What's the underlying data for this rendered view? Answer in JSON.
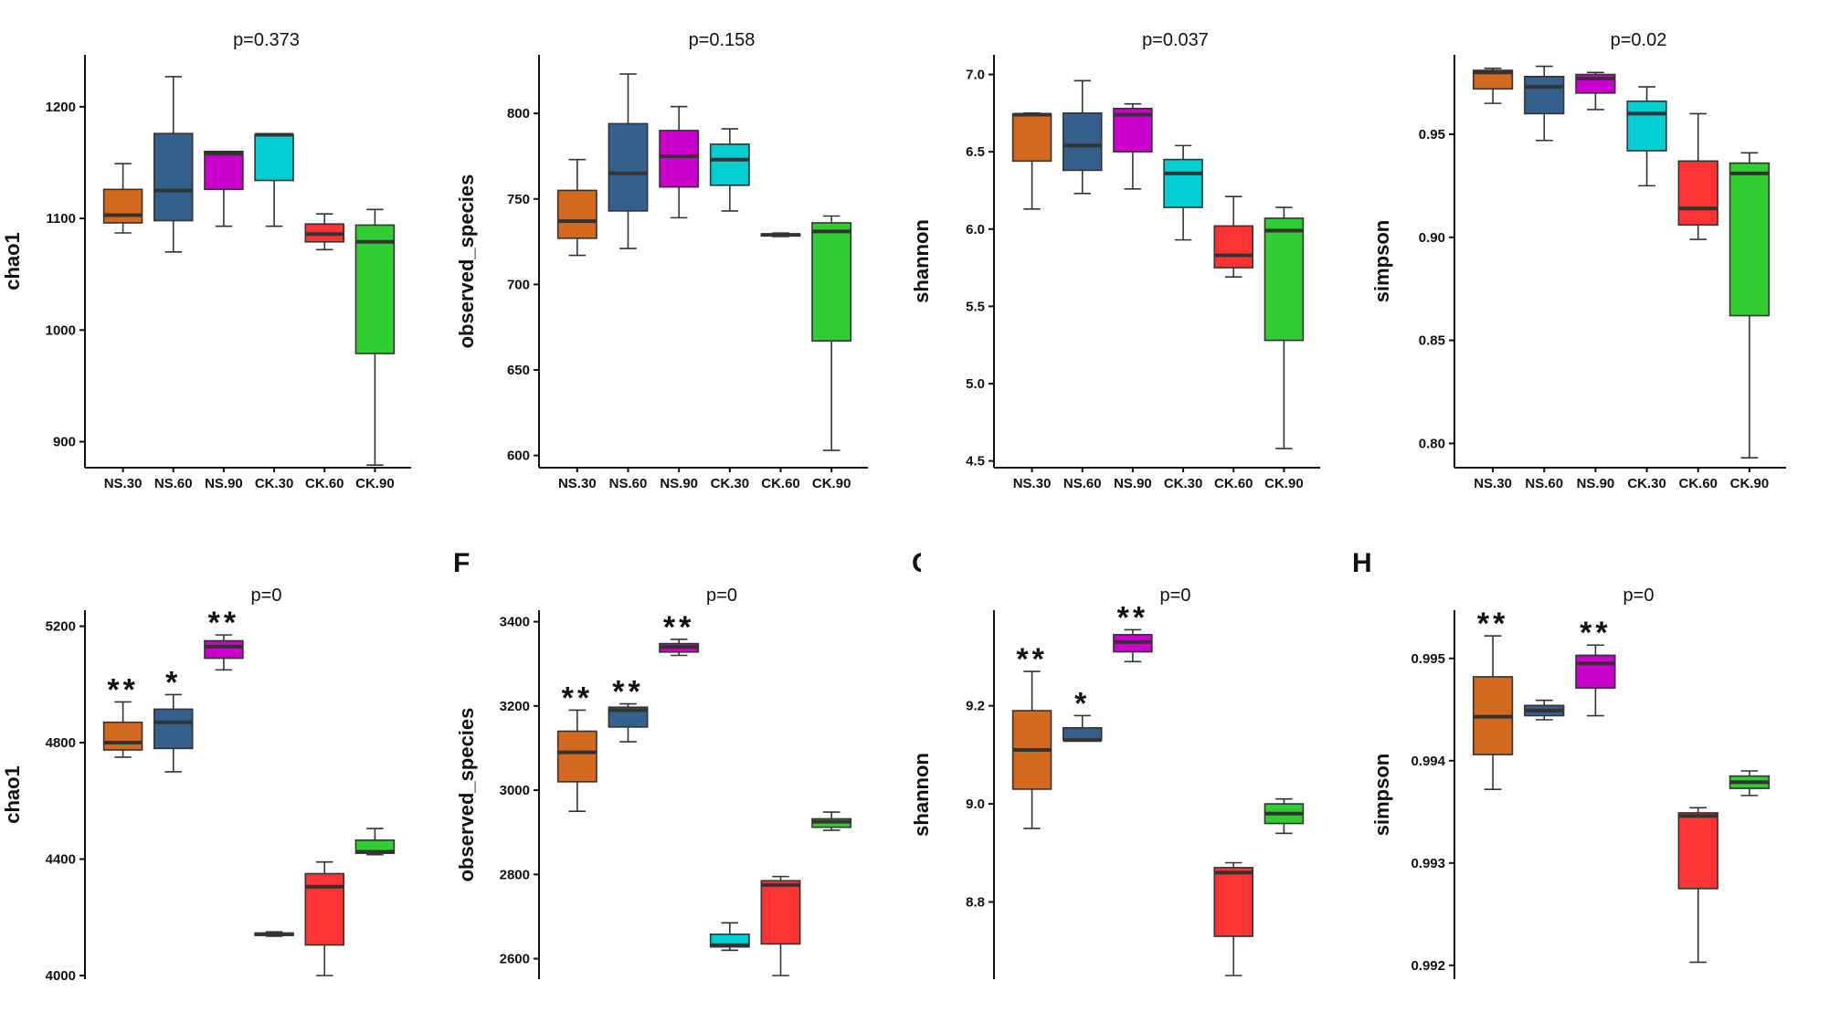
{
  "colors": {
    "NS.30": "#D2691E",
    "NS.60": "#33608C",
    "NS.90": "#CC00CC",
    "CK.30": "#00CED1",
    "CK.60": "#FF3333",
    "CK.90": "#32CD32"
  },
  "panel_letters": [
    "F",
    "G",
    "H"
  ],
  "chart_data": [
    {
      "type": "box",
      "title": "p=0.373",
      "ylabel": "chao1",
      "ylim": [
        880,
        1240
      ],
      "yticks": [
        900,
        1000,
        1100,
        1200
      ],
      "categories": [
        "NS.30",
        "NS.60",
        "NS.90",
        "CK.30",
        "CK.60",
        "CK.90"
      ],
      "boxes": [
        {
          "group": "NS.30",
          "min": 1087,
          "q1": 1096,
          "median": 1103,
          "q3": 1126,
          "max": 1149,
          "star": ""
        },
        {
          "group": "NS.60",
          "min": 1070,
          "q1": 1098,
          "median": 1125,
          "q3": 1176,
          "max": 1227,
          "star": ""
        },
        {
          "group": "NS.90",
          "min": 1093,
          "q1": 1126,
          "median": 1158,
          "q3": 1160,
          "max": 1160,
          "star": ""
        },
        {
          "group": "CK.30",
          "min": 1093,
          "q1": 1134,
          "median": 1175,
          "q3": 1175,
          "max": 1175,
          "star": ""
        },
        {
          "group": "CK.60",
          "min": 1072,
          "q1": 1079,
          "median": 1086,
          "q3": 1095,
          "max": 1104,
          "star": ""
        },
        {
          "group": "CK.90",
          "min": 879,
          "q1": 979,
          "median": 1079,
          "q3": 1094,
          "max": 1108,
          "star": ""
        }
      ]
    },
    {
      "type": "box",
      "title": "p=0.158",
      "ylabel": "observed_species",
      "ylim": [
        595,
        830
      ],
      "yticks": [
        600,
        650,
        700,
        750,
        800
      ],
      "categories": [
        "NS.30",
        "NS.60",
        "NS.90",
        "CK.30",
        "CK.60",
        "CK.90"
      ],
      "boxes": [
        {
          "group": "NS.30",
          "min": 717,
          "q1": 727,
          "median": 737,
          "q3": 755,
          "max": 773,
          "star": ""
        },
        {
          "group": "NS.60",
          "min": 721,
          "q1": 743,
          "median": 765,
          "q3": 794,
          "max": 823,
          "star": ""
        },
        {
          "group": "NS.90",
          "min": 739,
          "q1": 757,
          "median": 775,
          "q3": 790,
          "max": 804,
          "star": ""
        },
        {
          "group": "CK.30",
          "min": 743,
          "q1": 758,
          "median": 773,
          "q3": 782,
          "max": 791,
          "star": ""
        },
        {
          "group": "CK.60",
          "min": 728,
          "q1": 728.5,
          "median": 729,
          "q3": 729.5,
          "max": 730,
          "star": ""
        },
        {
          "group": "CK.90",
          "min": 603,
          "q1": 667,
          "median": 731,
          "q3": 736,
          "max": 740,
          "star": ""
        }
      ]
    },
    {
      "type": "box",
      "title": "p=0.037",
      "ylabel": "shannon",
      "ylim": [
        4.48,
        7.08
      ],
      "yticks": [
        4.5,
        5.0,
        5.5,
        6.0,
        6.5,
        7.0
      ],
      "tick_format": "1",
      "categories": [
        "NS.30",
        "NS.60",
        "NS.90",
        "CK.30",
        "CK.60",
        "CK.90"
      ],
      "boxes": [
        {
          "group": "NS.30",
          "min": 6.13,
          "q1": 6.44,
          "median": 6.74,
          "q3": 6.745,
          "max": 6.75,
          "star": ""
        },
        {
          "group": "NS.60",
          "min": 6.23,
          "q1": 6.38,
          "median": 6.54,
          "q3": 6.75,
          "max": 6.96,
          "star": ""
        },
        {
          "group": "NS.90",
          "min": 6.26,
          "q1": 6.5,
          "median": 6.74,
          "q3": 6.78,
          "max": 6.81,
          "star": ""
        },
        {
          "group": "CK.30",
          "min": 5.93,
          "q1": 6.14,
          "median": 6.36,
          "q3": 6.45,
          "max": 6.54,
          "star": ""
        },
        {
          "group": "CK.60",
          "min": 5.69,
          "q1": 5.75,
          "median": 5.83,
          "q3": 6.02,
          "max": 6.21,
          "star": ""
        },
        {
          "group": "CK.90",
          "min": 4.58,
          "q1": 5.28,
          "median": 5.99,
          "q3": 6.07,
          "max": 6.14,
          "star": ""
        }
      ]
    },
    {
      "type": "box",
      "title": "p=0.02",
      "ylabel": "simpson",
      "ylim": [
        0.79,
        0.985
      ],
      "yticks": [
        0.8,
        0.85,
        0.9,
        0.95
      ],
      "tick_format": "2",
      "categories": [
        "NS.30",
        "NS.60",
        "NS.90",
        "CK.30",
        "CK.60",
        "CK.90"
      ],
      "boxes": [
        {
          "group": "NS.30",
          "min": 0.965,
          "q1": 0.972,
          "median": 0.98,
          "q3": 0.981,
          "max": 0.982,
          "star": ""
        },
        {
          "group": "NS.60",
          "min": 0.947,
          "q1": 0.96,
          "median": 0.973,
          "q3": 0.978,
          "max": 0.983,
          "star": ""
        },
        {
          "group": "NS.90",
          "min": 0.962,
          "q1": 0.97,
          "median": 0.977,
          "q3": 0.979,
          "max": 0.98,
          "star": ""
        },
        {
          "group": "CK.30",
          "min": 0.925,
          "q1": 0.942,
          "median": 0.96,
          "q3": 0.966,
          "max": 0.973,
          "star": ""
        },
        {
          "group": "CK.60",
          "min": 0.899,
          "q1": 0.906,
          "median": 0.914,
          "q3": 0.937,
          "max": 0.96,
          "star": ""
        },
        {
          "group": "CK.90",
          "min": 0.793,
          "q1": 0.862,
          "median": 0.931,
          "q3": 0.936,
          "max": 0.941,
          "star": ""
        }
      ]
    },
    {
      "type": "box",
      "title": "p=0",
      "ylabel": "chao1",
      "ylim": [
        4000,
        5230
      ],
      "yticks": [
        4000,
        4400,
        4800,
        5200
      ],
      "categories": [
        "NS.30",
        "NS.60",
        "NS.90",
        "CK.30",
        "CK.60",
        "CK.90"
      ],
      "boxes": [
        {
          "group": "NS.30",
          "min": 4750,
          "q1": 4775,
          "median": 4800,
          "q3": 4870,
          "max": 4940,
          "star": "**"
        },
        {
          "group": "NS.60",
          "min": 4700,
          "q1": 4780,
          "median": 4870,
          "q3": 4915,
          "max": 4965,
          "star": "*"
        },
        {
          "group": "NS.90",
          "min": 5050,
          "q1": 5090,
          "median": 5130,
          "q3": 5150,
          "max": 5170,
          "star": "**"
        },
        {
          "group": "CK.30",
          "min": 4135,
          "q1": 4138,
          "median": 4142,
          "q3": 4146,
          "max": 4150,
          "star": ""
        },
        {
          "group": "CK.60",
          "min": 4000,
          "q1": 4105,
          "median": 4305,
          "q3": 4350,
          "max": 4390,
          "star": ""
        },
        {
          "group": "CK.90",
          "min": 4415,
          "q1": 4420,
          "median": 4425,
          "q3": 4465,
          "max": 4505,
          "star": ""
        }
      ]
    },
    {
      "type": "box",
      "title": "p=0",
      "ylabel": "observed_species",
      "ylim": [
        2560,
        3410
      ],
      "yticks": [
        2600,
        2800,
        3000,
        3200,
        3400
      ],
      "categories": [
        "NS.30",
        "NS.60",
        "NS.90",
        "CK.30",
        "CK.60",
        "CK.90"
      ],
      "boxes": [
        {
          "group": "NS.30",
          "min": 2950,
          "q1": 3020,
          "median": 3090,
          "q3": 3140,
          "max": 3190,
          "star": "**"
        },
        {
          "group": "NS.60",
          "min": 3115,
          "q1": 3150,
          "median": 3190,
          "q3": 3197,
          "max": 3205,
          "star": "**"
        },
        {
          "group": "NS.90",
          "min": 3320,
          "q1": 3328,
          "median": 3340,
          "q3": 3348,
          "max": 3358,
          "star": "**"
        },
        {
          "group": "CK.30",
          "min": 2620,
          "q1": 2628,
          "median": 2632,
          "q3": 2658,
          "max": 2685,
          "star": ""
        },
        {
          "group": "CK.60",
          "min": 2560,
          "q1": 2635,
          "median": 2775,
          "q3": 2785,
          "max": 2795,
          "star": ""
        },
        {
          "group": "CK.90",
          "min": 2905,
          "q1": 2912,
          "median": 2925,
          "q3": 2932,
          "max": 2948,
          "star": ""
        }
      ]
    },
    {
      "type": "box",
      "title": "p=0",
      "ylabel": "shannon",
      "ylim": [
        8.65,
        9.38
      ],
      "yticks": [
        8.8,
        9.0,
        9.2
      ],
      "tick_format": "1",
      "categories": [
        "NS.30",
        "NS.60",
        "NS.90",
        "CK.30",
        "CK.60",
        "CK.90"
      ],
      "boxes": [
        {
          "group": "NS.30",
          "min": 8.95,
          "q1": 9.03,
          "median": 9.11,
          "q3": 9.19,
          "max": 9.27,
          "star": "**"
        },
        {
          "group": "NS.60",
          "min": 9.13,
          "q1": 9.13,
          "median": 9.13,
          "q3": 9.155,
          "max": 9.18,
          "star": "*"
        },
        {
          "group": "NS.90",
          "min": 9.29,
          "q1": 9.31,
          "median": 9.33,
          "q3": 9.345,
          "max": 9.355,
          "star": "**"
        },
        {
          "group": "CK.60",
          "min": 8.65,
          "q1": 8.73,
          "median": 8.86,
          "q3": 8.87,
          "max": 8.88,
          "star": ""
        },
        {
          "group": "CK.90",
          "min": 8.94,
          "q1": 8.96,
          "median": 8.98,
          "q3": 9.0,
          "max": 9.01,
          "star": ""
        }
      ]
    },
    {
      "type": "box",
      "title": "p=0",
      "ylabel": "simpson",
      "ylim": [
        0.9919,
        0.9954
      ],
      "yticks": [
        0.992,
        0.993,
        0.994,
        0.995
      ],
      "tick_format": "3",
      "categories": [
        "NS.30",
        "NS.60",
        "NS.90",
        "CK.30",
        "CK.60",
        "CK.90"
      ],
      "boxes": [
        {
          "group": "NS.30",
          "min": 0.99372,
          "q1": 0.99406,
          "median": 0.99443,
          "q3": 0.99482,
          "max": 0.99522,
          "star": "**"
        },
        {
          "group": "NS.60",
          "min": 0.9944,
          "q1": 0.99444,
          "median": 0.99449,
          "q3": 0.99454,
          "max": 0.99459,
          "star": ""
        },
        {
          "group": "NS.90",
          "min": 0.99444,
          "q1": 0.99471,
          "median": 0.99495,
          "q3": 0.99503,
          "max": 0.99513,
          "star": "**"
        },
        {
          "group": "CK.60",
          "min": 0.99203,
          "q1": 0.99275,
          "median": 0.99346,
          "q3": 0.99349,
          "max": 0.99354,
          "star": ""
        },
        {
          "group": "CK.90",
          "min": 0.99366,
          "q1": 0.99373,
          "median": 0.99379,
          "q3": 0.99385,
          "max": 0.9939,
          "star": ""
        }
      ]
    }
  ]
}
